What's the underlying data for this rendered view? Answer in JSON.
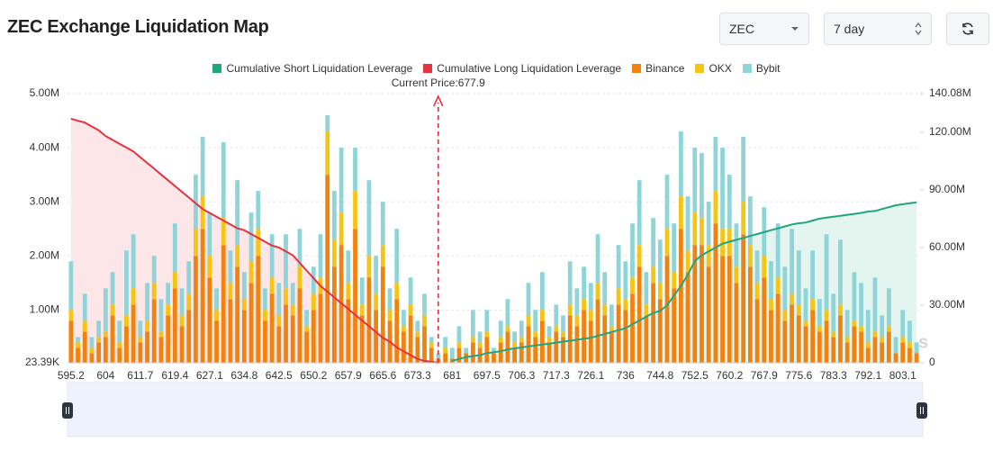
{
  "header": {
    "title": "ZEC Exchange Liquidation Map"
  },
  "controls": {
    "symbol": "ZEC",
    "period": "7 day"
  },
  "chart_data": {
    "type": "bar",
    "watermark": "coinglass",
    "current_price": {
      "value": 677.9,
      "label": "Current Price:677.9"
    },
    "categories": [
      "595.2",
      null,
      null,
      null,
      null,
      "604",
      null,
      null,
      null,
      null,
      "611.7",
      null,
      null,
      null,
      null,
      "619.4",
      null,
      null,
      null,
      null,
      "627.1",
      null,
      null,
      null,
      null,
      "634.8",
      null,
      null,
      null,
      null,
      "642.5",
      null,
      null,
      null,
      null,
      "650.2",
      null,
      null,
      null,
      null,
      "657.9",
      null,
      null,
      null,
      null,
      "665.6",
      null,
      null,
      null,
      null,
      "673.3",
      null,
      null,
      null,
      null,
      "681",
      null,
      null,
      null,
      null,
      "697.5",
      null,
      null,
      null,
      null,
      "706.3",
      null,
      null,
      null,
      null,
      "717.3",
      null,
      null,
      null,
      null,
      "726.1",
      null,
      null,
      null,
      null,
      "736",
      null,
      null,
      null,
      null,
      "744.8",
      null,
      null,
      null,
      null,
      "752.5",
      null,
      null,
      null,
      null,
      "760.2",
      null,
      null,
      null,
      null,
      "767.9",
      null,
      null,
      null,
      null,
      "775.6",
      null,
      null,
      null,
      null,
      "783.3",
      null,
      null,
      null,
      null,
      "792.1",
      null,
      null,
      null,
      null,
      "803.1",
      null,
      null
    ],
    "ylim": [
      23390,
      5000000
    ],
    "yticks": [
      {
        "value": 23390,
        "label": "23.39K"
      },
      {
        "value": 1000000,
        "label": "1.00M"
      },
      {
        "value": 2000000,
        "label": "2.00M"
      },
      {
        "value": 3000000,
        "label": "3.00M"
      },
      {
        "value": 4000000,
        "label": "4.00M"
      },
      {
        "value": 5000000,
        "label": "5.00M"
      }
    ],
    "y2lim": [
      0,
      140080000
    ],
    "y2ticks": [
      0,
      {
        "value": 30000000,
        "label": "30.00M"
      },
      {
        "value": 60000000,
        "label": "60.00M"
      },
      {
        "value": 90000000,
        "label": "90.00M"
      },
      {
        "value": 120000000,
        "label": "120.00M"
      },
      {
        "value": 140080000,
        "label": "140.08M"
      }
    ],
    "grid": true,
    "series": [
      {
        "name": "Cumulative Short Liquidation Leverage",
        "type": "line",
        "axis": "y2",
        "color": "#21a57f",
        "fill": "#e3f5ee",
        "values": [
          null,
          null,
          null,
          null,
          null,
          null,
          null,
          null,
          null,
          null,
          null,
          null,
          null,
          null,
          null,
          null,
          null,
          null,
          null,
          null,
          null,
          null,
          null,
          null,
          null,
          null,
          null,
          null,
          null,
          null,
          null,
          null,
          null,
          null,
          null,
          null,
          null,
          null,
          null,
          null,
          null,
          null,
          null,
          null,
          null,
          null,
          null,
          null,
          null,
          null,
          null,
          null,
          null,
          null,
          null,
          1000000,
          2000000,
          3000000,
          3500000,
          4000000,
          5000000,
          5500000,
          6000000,
          7000000,
          7500000,
          8000000,
          8500000,
          9000000,
          9500000,
          10000000,
          10500000,
          11000000,
          11500000,
          12000000,
          12500000,
          13000000,
          14000000,
          15000000,
          16000000,
          17000000,
          18000000,
          20000000,
          22000000,
          24000000,
          26000000,
          27000000,
          30000000,
          35000000,
          40000000,
          46000000,
          53000000,
          56000000,
          58000000,
          60000000,
          62000000,
          63000000,
          64000000,
          65000000,
          66000000,
          67000000,
          68000000,
          69000000,
          70000000,
          71000000,
          72000000,
          72600000,
          73000000,
          74000000,
          75000000,
          75500000,
          76000000,
          76500000,
          77000000,
          77500000,
          78000000,
          78700000,
          79000000,
          80000000,
          81000000,
          82000000,
          82500000,
          83000000,
          83500000
        ]
      },
      {
        "name": "Cumulative Long Liquidation Leverage",
        "type": "line",
        "axis": "y2",
        "color": "#e5323f",
        "fill": "#fce6e8",
        "values": [
          127000000,
          126000000,
          125000000,
          123000000,
          121000000,
          118000000,
          116000000,
          114000000,
          112000000,
          110000000,
          107000000,
          104000000,
          101000000,
          98000000,
          95000000,
          92000000,
          89000000,
          86000000,
          83000000,
          80000000,
          78000000,
          76000000,
          74000000,
          72000000,
          70000000,
          69000000,
          67000000,
          65000000,
          63000000,
          61000000,
          60000000,
          58000000,
          56000000,
          52000000,
          48000000,
          44000000,
          40000000,
          37000000,
          34000000,
          31000000,
          28000000,
          25000000,
          22000000,
          19000000,
          16000000,
          13000000,
          11000000,
          8000000,
          6000000,
          4000000,
          2000000,
          1000000,
          500000,
          0,
          null,
          null,
          null,
          null,
          null,
          null,
          null,
          null,
          null,
          null,
          null,
          null,
          null,
          null,
          null,
          null,
          null,
          null,
          null,
          null,
          null,
          null,
          null,
          null,
          null,
          null,
          null,
          null,
          null,
          null,
          null,
          null,
          null,
          null,
          null,
          null,
          null,
          null,
          null,
          null,
          null,
          null,
          null,
          null,
          null,
          null,
          null,
          null,
          null,
          null,
          null,
          null,
          null,
          null,
          null,
          null,
          null,
          null,
          null,
          null,
          null,
          null,
          null,
          null,
          null,
          null,
          null,
          null,
          null
        ]
      },
      {
        "name": "Binance",
        "type": "bar",
        "color": "#f2820f",
        "values": [
          800000,
          300000,
          600000,
          200000,
          400000,
          500000,
          900000,
          300000,
          700000,
          1100000,
          400000,
          600000,
          1200000,
          500000,
          900000,
          1400000,
          700000,
          1000000,
          2000000,
          2500000,
          1600000,
          800000,
          2200000,
          1200000,
          1800000,
          1000000,
          1500000,
          2000000,
          800000,
          1300000,
          700000,
          1100000,
          900000,
          1400000,
          600000,
          1000000,
          1300000,
          3500000,
          1800000,
          2200000,
          1200000,
          2500000,
          900000,
          1600000,
          1000000,
          1800000,
          800000,
          1200000,
          600000,
          900000,
          500000,
          700000,
          300000,
          100000,
          200000,
          100000,
          300000,
          200000,
          400000,
          300000,
          500000,
          200000,
          400000,
          600000,
          300000,
          400000,
          700000,
          500000,
          800000,
          400000,
          600000,
          500000,
          900000,
          700000,
          1000000,
          800000,
          1200000,
          900000,
          600000,
          1100000,
          1000000,
          1300000,
          1800000,
          900000,
          1500000,
          1200000,
          2000000,
          1400000,
          2500000,
          1700000,
          2200000,
          2200000,
          1800000,
          2600000,
          2000000,
          2000000,
          1500000,
          2400000,
          1800000,
          1200000,
          1600000,
          1000000,
          1300000,
          800000,
          1100000,
          900000,
          700000,
          1000000,
          600000,
          800000,
          500000,
          900000,
          400000,
          700000,
          600000,
          300000,
          500000,
          400000,
          600000,
          200000,
          400000,
          300000,
          200000
        ]
      },
      {
        "name": "OKX",
        "type": "bar",
        "color": "#f6c413",
        "values": [
          200000,
          100000,
          200000,
          100000,
          100000,
          100000,
          200000,
          100000,
          200000,
          300000,
          100000,
          200000,
          300000,
          100000,
          200000,
          300000,
          200000,
          300000,
          500000,
          600000,
          400000,
          200000,
          500000,
          300000,
          400000,
          200000,
          400000,
          500000,
          200000,
          300000,
          200000,
          300000,
          200000,
          400000,
          100000,
          300000,
          300000,
          800000,
          500000,
          600000,
          300000,
          700000,
          200000,
          400000,
          300000,
          400000,
          200000,
          300000,
          100000,
          200000,
          100000,
          200000,
          100000,
          0,
          100000,
          0,
          100000,
          0,
          100000,
          100000,
          100000,
          0,
          100000,
          100000,
          100000,
          100000,
          200000,
          100000,
          200000,
          100000,
          100000,
          100000,
          200000,
          200000,
          200000,
          200000,
          300000,
          200000,
          100000,
          300000,
          200000,
          300000,
          400000,
          200000,
          300000,
          300000,
          500000,
          300000,
          600000,
          400000,
          600000,
          500000,
          400000,
          600000,
          500000,
          500000,
          300000,
          600000,
          400000,
          300000,
          400000,
          200000,
          300000,
          200000,
          200000,
          200000,
          100000,
          200000,
          100000,
          200000,
          100000,
          200000,
          100000,
          100000,
          100000,
          100000,
          100000,
          100000,
          100000,
          0,
          100000,
          100000,
          0
        ]
      },
      {
        "name": "Bybit",
        "type": "bar",
        "color": "#8fd4d9",
        "values": [
          900000,
          100000,
          500000,
          200000,
          300000,
          800000,
          600000,
          400000,
          1200000,
          1000000,
          300000,
          700000,
          500000,
          600000,
          400000,
          900000,
          500000,
          600000,
          1000000,
          1100000,
          800000,
          400000,
          1400000,
          600000,
          1200000,
          500000,
          900000,
          700000,
          400000,
          800000,
          600000,
          1000000,
          400000,
          700000,
          300000,
          500000,
          800000,
          300000,
          900000,
          1200000,
          600000,
          800000,
          500000,
          1400000,
          700000,
          800000,
          400000,
          1000000,
          300000,
          500000,
          200000,
          400000,
          100000,
          100000,
          200000,
          200000,
          300000,
          100000,
          500000,
          200000,
          400000,
          100000,
          300000,
          500000,
          200000,
          300000,
          600000,
          400000,
          700000,
          200000,
          400000,
          300000,
          800000,
          500000,
          600000,
          500000,
          900000,
          600000,
          400000,
          800000,
          700000,
          1000000,
          1200000,
          600000,
          900000,
          800000,
          1000000,
          900000,
          1200000,
          1000000,
          1200000,
          1200000,
          800000,
          1000000,
          1500000,
          1000000,
          800000,
          1200000,
          900000,
          600000,
          900000,
          700000,
          1000000,
          800000,
          1200000,
          1000000,
          600000,
          900000,
          500000,
          1400000,
          700000,
          1200000,
          500000,
          900000,
          800000,
          600000,
          1000000,
          400000,
          700000,
          300000,
          500000,
          400000,
          200000
        ]
      }
    ]
  }
}
